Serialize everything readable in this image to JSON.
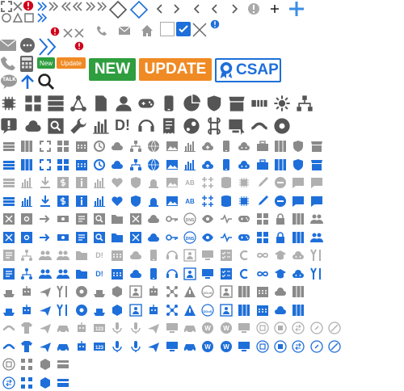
{
  "colors": {
    "grey": "#7a7a7a",
    "dark": "#555555",
    "blue": "#1e6fd9",
    "light_grey": "#b8b8b8",
    "red": "#d0021b",
    "new_green": "#2e9e3f",
    "update_orange": "#f08a24",
    "csap_blue": "#1e6fd9"
  },
  "badges": {
    "new_small": "New",
    "update_small": "Update",
    "new_large": "NEW",
    "update_large": "UPDATE",
    "csap": "CSAP",
    "dollar": "D!",
    "talk": "TALK",
    "ab": "AB",
    "dns": "DNS",
    "ddos": "DDoS",
    "num_123": "123",
    "w": "W",
    "v2": "v2"
  },
  "icon_sets": {
    "row_styles": [
      "grey-outline",
      "blue-filled",
      "light-grey-outline",
      "blue-filled",
      "grey-outline",
      "blue-filled",
      "light-grey-outline",
      "blue-filled",
      "grey-outline",
      "blue-filled",
      "light-grey-outline",
      "blue-filled",
      "grey-outline",
      "blue-filled"
    ]
  }
}
